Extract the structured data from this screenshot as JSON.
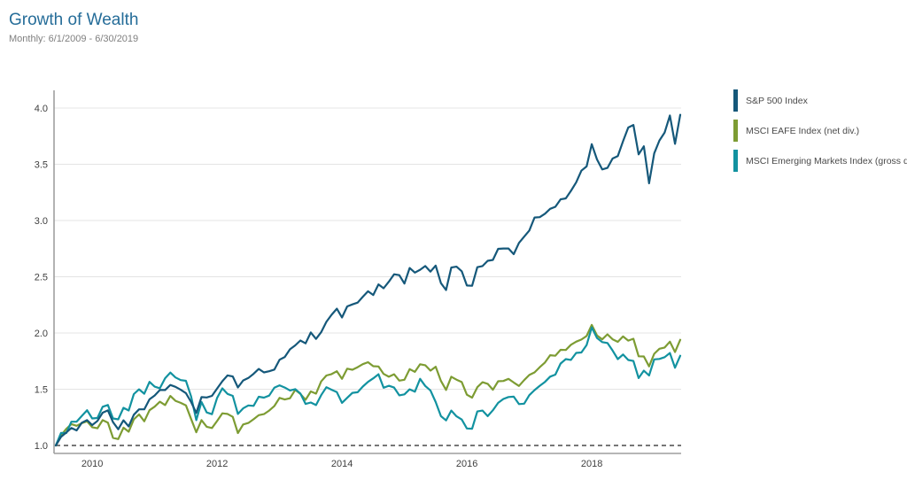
{
  "header": {
    "title": "Growth of Wealth",
    "subtitle": "Monthly: 6/1/2009 - 6/30/2019",
    "title_color": "#266d99"
  },
  "legend": {
    "position": "right",
    "items": [
      {
        "label": "S&P 500 Index",
        "color": "#15587a"
      },
      {
        "label": "MSCI EAFE Index (net div.)",
        "color": "#7d9c33"
      },
      {
        "label": "MSCI Emerging Markets Index (gross div.)",
        "color": "#1292a0"
      }
    ]
  },
  "chart_data": {
    "type": "line",
    "title": "Growth of Wealth",
    "subtitle": "Monthly: 6/1/2009 - 6/30/2019",
    "x_unit": "month",
    "x_start": "6/2009",
    "x_end": "6/2019",
    "points_per_series": 121,
    "ylim": [
      0.93,
      4.16
    ],
    "grid": "horizontal",
    "legend_position": "right",
    "baseline": {
      "value": 1.0,
      "style": "dashed"
    },
    "y_ticks": [
      {
        "label": "1.0",
        "value": 1.0
      },
      {
        "label": "1.5",
        "value": 1.5
      },
      {
        "label": "2.0",
        "value": 2.0
      },
      {
        "label": "2.5",
        "value": 2.5
      },
      {
        "label": "3.0",
        "value": 3.0
      },
      {
        "label": "3.5",
        "value": 3.5
      },
      {
        "label": "4.0",
        "value": 4.0
      }
    ],
    "x_ticks": [
      {
        "label": "2010",
        "month_index": 7
      },
      {
        "label": "2012",
        "month_index": 31
      },
      {
        "label": "2014",
        "month_index": 55
      },
      {
        "label": "2016",
        "month_index": 79
      },
      {
        "label": "2018",
        "month_index": 103
      }
    ],
    "series": [
      {
        "name": "S&P 500 Index",
        "color": "#15587a",
        "end_value": 3.94,
        "values": [
          1.0,
          1.076,
          1.115,
          1.156,
          1.134,
          1.202,
          1.225,
          1.181,
          1.218,
          1.291,
          1.312,
          1.207,
          1.144,
          1.224,
          1.169,
          1.273,
          1.321,
          1.321,
          1.41,
          1.444,
          1.493,
          1.493,
          1.538,
          1.521,
          1.495,
          1.465,
          1.386,
          1.289,
          1.43,
          1.427,
          1.441,
          1.506,
          1.571,
          1.623,
          1.613,
          1.516,
          1.578,
          1.6,
          1.637,
          1.68,
          1.65,
          1.66,
          1.675,
          1.762,
          1.787,
          1.855,
          1.89,
          1.933,
          1.908,
          2.005,
          1.947,
          2.007,
          2.099,
          2.162,
          2.216,
          2.138,
          2.236,
          2.254,
          2.27,
          2.322,
          2.371,
          2.338,
          2.432,
          2.398,
          2.456,
          2.522,
          2.514,
          2.439,
          2.578,
          2.537,
          2.562,
          2.595,
          2.546,
          2.599,
          2.443,
          2.382,
          2.582,
          2.59,
          2.549,
          2.422,
          2.42,
          2.585,
          2.595,
          2.642,
          2.65,
          2.748,
          2.751,
          2.751,
          2.701,
          2.801,
          2.857,
          2.911,
          3.027,
          3.03,
          3.061,
          3.104,
          3.122,
          3.188,
          3.197,
          3.264,
          3.339,
          3.443,
          3.481,
          3.679,
          3.543,
          3.454,
          3.468,
          3.551,
          3.573,
          3.705,
          3.827,
          3.85,
          3.588,
          3.66,
          3.331,
          3.597,
          3.712,
          3.783,
          3.934,
          3.682,
          3.94
        ]
      },
      {
        "name": "MSCI EAFE Index (net div.)",
        "color": "#7d9c33",
        "end_value": 1.94,
        "values": [
          1.0,
          1.09,
          1.147,
          1.19,
          1.175,
          1.198,
          1.215,
          1.162,
          1.153,
          1.225,
          1.203,
          1.068,
          1.057,
          1.158,
          1.122,
          1.232,
          1.276,
          1.215,
          1.313,
          1.345,
          1.389,
          1.359,
          1.44,
          1.397,
          1.379,
          1.357,
          1.235,
          1.117,
          1.225,
          1.166,
          1.155,
          1.217,
          1.286,
          1.28,
          1.254,
          1.11,
          1.187,
          1.2,
          1.233,
          1.269,
          1.279,
          1.31,
          1.351,
          1.423,
          1.409,
          1.42,
          1.494,
          1.458,
          1.406,
          1.48,
          1.461,
          1.569,
          1.622,
          1.635,
          1.66,
          1.593,
          1.683,
          1.673,
          1.696,
          1.723,
          1.74,
          1.705,
          1.702,
          1.636,
          1.611,
          1.633,
          1.576,
          1.584,
          1.679,
          1.654,
          1.722,
          1.713,
          1.665,
          1.7,
          1.574,
          1.494,
          1.611,
          1.585,
          1.564,
          1.451,
          1.425,
          1.518,
          1.562,
          1.548,
          1.495,
          1.571,
          1.573,
          1.592,
          1.56,
          1.529,
          1.581,
          1.627,
          1.65,
          1.696,
          1.738,
          1.802,
          1.798,
          1.85,
          1.849,
          1.895,
          1.923,
          1.942,
          1.973,
          2.072,
          1.979,
          1.943,
          1.988,
          1.944,
          1.921,
          1.969,
          1.932,
          1.949,
          1.793,
          1.791,
          1.703,
          1.815,
          1.86,
          1.871,
          1.923,
          1.831,
          1.939
        ]
      },
      {
        "name": "MSCI Emerging Markets Index (gross div.)",
        "color": "#1292a0",
        "end_value": 1.8,
        "values": [
          1.0,
          1.112,
          1.11,
          1.211,
          1.212,
          1.263,
          1.313,
          1.24,
          1.244,
          1.344,
          1.36,
          1.24,
          1.232,
          1.335,
          1.311,
          1.457,
          1.499,
          1.46,
          1.565,
          1.523,
          1.509,
          1.598,
          1.648,
          1.605,
          1.581,
          1.575,
          1.435,
          1.225,
          1.387,
          1.294,
          1.278,
          1.423,
          1.508,
          1.458,
          1.441,
          1.28,
          1.33,
          1.356,
          1.352,
          1.433,
          1.425,
          1.443,
          1.514,
          1.535,
          1.515,
          1.489,
          1.501,
          1.462,
          1.369,
          1.382,
          1.359,
          1.447,
          1.518,
          1.495,
          1.474,
          1.379,
          1.424,
          1.468,
          1.473,
          1.524,
          1.565,
          1.597,
          1.633,
          1.513,
          1.531,
          1.515,
          1.446,
          1.454,
          1.499,
          1.478,
          1.592,
          1.529,
          1.489,
          1.386,
          1.261,
          1.223,
          1.31,
          1.259,
          1.231,
          1.151,
          1.149,
          1.302,
          1.31,
          1.261,
          1.313,
          1.379,
          1.413,
          1.431,
          1.434,
          1.368,
          1.372,
          1.447,
          1.492,
          1.531,
          1.565,
          1.612,
          1.63,
          1.728,
          1.768,
          1.761,
          1.823,
          1.827,
          1.893,
          2.05,
          1.956,
          1.919,
          1.911,
          1.844,
          1.768,
          1.809,
          1.76,
          1.751,
          1.599,
          1.665,
          1.622,
          1.765,
          1.769,
          1.785,
          1.822,
          1.691,
          1.798
        ]
      }
    ]
  }
}
